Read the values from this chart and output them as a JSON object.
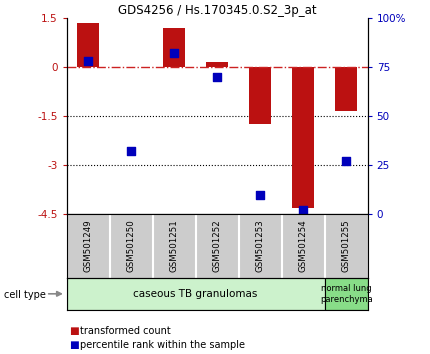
{
  "title": "GDS4256 / Hs.170345.0.S2_3p_at",
  "samples": [
    "GSM501249",
    "GSM501250",
    "GSM501251",
    "GSM501252",
    "GSM501253",
    "GSM501254",
    "GSM501255"
  ],
  "transformed_counts": [
    1.35,
    -0.02,
    1.2,
    0.15,
    -1.75,
    -4.3,
    -1.35
  ],
  "percentile_ranks": [
    78,
    32,
    82,
    70,
    10,
    2,
    27
  ],
  "ylim_left": [
    -4.5,
    1.5
  ],
  "ylim_right": [
    0,
    100
  ],
  "yticks_left": [
    -4.5,
    -3.0,
    -1.5,
    0.0,
    1.5
  ],
  "yticks_right": [
    0,
    25,
    50,
    75,
    100
  ],
  "ytick_labels_left": [
    "-4.5",
    "-3",
    "-1.5",
    "0",
    "1.5"
  ],
  "ytick_labels_right": [
    "0",
    "25",
    "50",
    "75",
    "100%"
  ],
  "bar_color": "#bb1111",
  "dot_color": "#0000bb",
  "hline_color": "#cc2222",
  "dotted_lines": [
    -1.5,
    -3.0
  ],
  "group1_label": "caseous TB granulomas",
  "group2_label": "normal lung\nparenchyma",
  "group1_color": "#ccf2cc",
  "group2_color": "#88dd88",
  "group1_n": 6,
  "group2_n": 1,
  "cell_type_label": "cell type",
  "legend_red_label": "transformed count",
  "legend_blue_label": "percentile rank within the sample",
  "bar_width": 0.5,
  "dot_size": 40,
  "label_box_color": "#cccccc"
}
